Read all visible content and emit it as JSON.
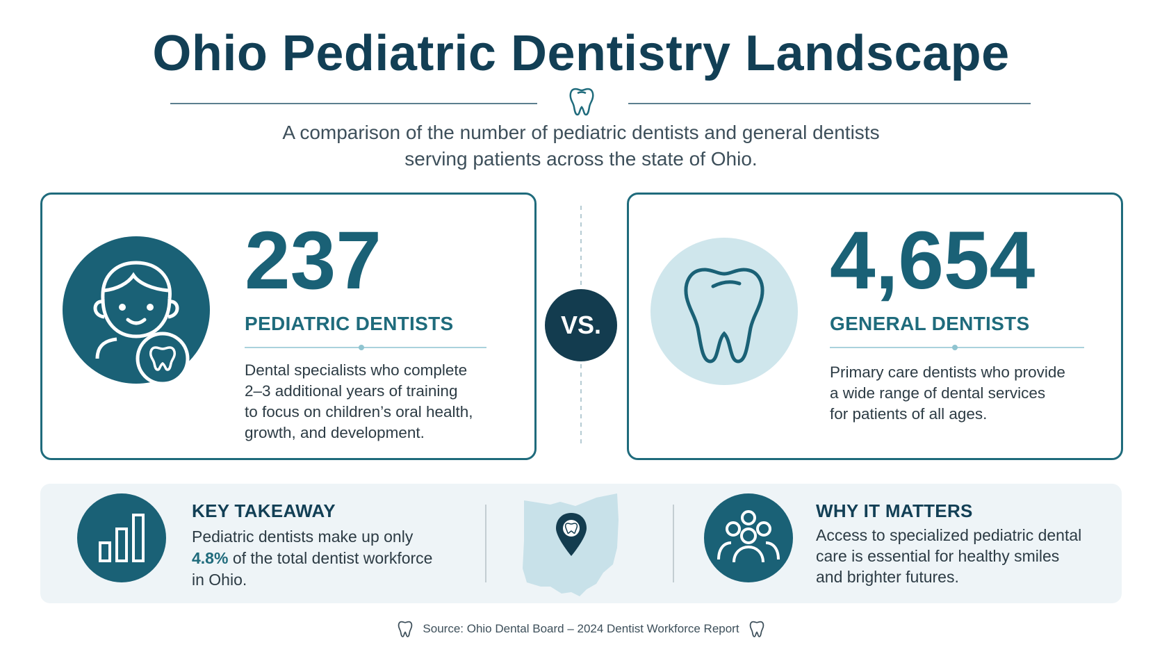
{
  "header": {
    "title": "Ohio Pediatric Dentistry Landscape",
    "subtitle_line1": "A comparison of the number of pediatric dentists and general dentists",
    "subtitle_line2": "serving patients across the state of Ohio."
  },
  "cards": [
    {
      "number": "237",
      "label": "PEDIATRIC DENTISTS",
      "description": [
        "Dental specialists who complete",
        "2–3 additional years of training",
        "to focus on children’s oral health,",
        "growth, and development."
      ],
      "icon": "child-with-tooth-icon"
    },
    {
      "number": "4,654",
      "label": "GENERAL DENTISTS",
      "description": [
        "Primary care dentists who provide",
        "a wide range of dental services",
        "for patients of all ages."
      ],
      "icon": "tooth-icon"
    }
  ],
  "vs_label": "VS.",
  "takeaway": {
    "heading": "KEY TAKEAWAY",
    "line1": "Pediatric dentists make up only",
    "percent": "4.8%",
    "line2_rest": " of the total dentist workforce",
    "line3": "in Ohio.",
    "icon": "bar-chart-icon"
  },
  "map_icon": "ohio-map-pin-icon",
  "why": {
    "heading": "WHY IT MATTERS",
    "lines": [
      "Access to specialized pediatric dental",
      "care is essential for healthy smiles",
      "and brighter futures."
    ],
    "icon": "people-group-icon"
  },
  "source": "Source: Ohio Dental Board – 2024 Dentist Workforce Report",
  "colors": {
    "primary": "#1a6176",
    "dark": "#123f55",
    "light_teal": "#cfe6ec",
    "panel_bg": "#eef4f7"
  }
}
